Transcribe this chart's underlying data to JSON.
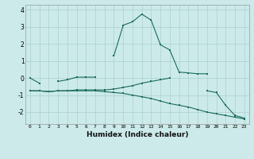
{
  "xlabel": "Humidex (Indice chaleur)",
  "x_values": [
    0,
    1,
    2,
    3,
    4,
    5,
    6,
    7,
    8,
    9,
    10,
    11,
    12,
    13,
    14,
    15,
    16,
    17,
    18,
    19,
    20,
    21,
    22,
    23
  ],
  "line1": [
    0.0,
    -0.3,
    null,
    -0.2,
    -0.1,
    0.05,
    0.05,
    0.05,
    null,
    1.3,
    3.1,
    3.3,
    3.75,
    3.4,
    1.95,
    1.65,
    0.35,
    0.3,
    0.25,
    0.25,
    null,
    null,
    null,
    null
  ],
  "line2": [
    -0.75,
    -0.75,
    -0.8,
    -0.75,
    -0.75,
    -0.7,
    -0.7,
    -0.7,
    -0.7,
    -0.65,
    -0.55,
    -0.45,
    -0.3,
    -0.2,
    -0.1,
    0.0,
    null,
    null,
    null,
    null,
    null,
    null,
    null,
    null
  ],
  "line3": [
    -0.75,
    null,
    null,
    null,
    null,
    null,
    null,
    null,
    null,
    null,
    null,
    null,
    null,
    null,
    null,
    null,
    null,
    null,
    null,
    -0.75,
    -0.85,
    -1.6,
    -2.2,
    -2.35
  ],
  "line4": [
    -0.75,
    -0.75,
    -0.8,
    -0.75,
    -0.75,
    -0.75,
    -0.75,
    -0.75,
    -0.8,
    -0.85,
    -0.9,
    -1.0,
    -1.1,
    -1.2,
    -1.35,
    -1.5,
    -1.6,
    -1.7,
    -1.85,
    -2.0,
    -2.1,
    -2.2,
    -2.3,
    -2.4
  ],
  "bg_color": "#cceaea",
  "grid_color": "#aacfcf",
  "line_color": "#1a6b5a",
  "ylim": [
    -2.7,
    4.3
  ],
  "yticks": [
    -2,
    -1,
    0,
    1,
    2,
    3,
    4
  ],
  "xticks": [
    0,
    1,
    2,
    3,
    4,
    5,
    6,
    7,
    8,
    9,
    10,
    11,
    12,
    13,
    14,
    15,
    16,
    17,
    18,
    19,
    20,
    21,
    22,
    23
  ]
}
